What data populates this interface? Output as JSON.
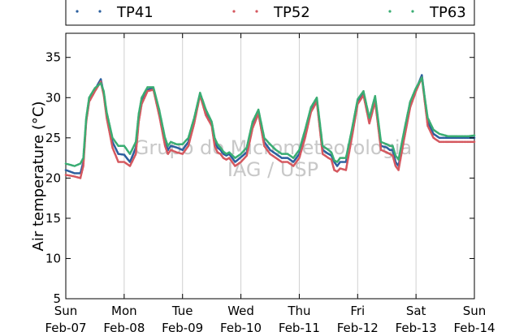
{
  "chart_data": {
    "type": "scatter",
    "title": "",
    "ylabel": "Air temperature (°C)",
    "xlabel": "",
    "ylim": [
      5,
      38
    ],
    "yticks": [
      5,
      10,
      15,
      20,
      25,
      30,
      35
    ],
    "xlim": [
      0,
      7
    ],
    "xticks": [
      {
        "x": 0,
        "day": "Sun",
        "date": "Feb-07"
      },
      {
        "x": 1,
        "day": "Mon",
        "date": "Feb-08"
      },
      {
        "x": 2,
        "day": "Tue",
        "date": "Feb-09"
      },
      {
        "x": 3,
        "day": "Wed",
        "date": "Feb-10"
      },
      {
        "x": 4,
        "day": "Thu",
        "date": "Feb-11"
      },
      {
        "x": 5,
        "day": "Fri",
        "date": "Feb-12"
      },
      {
        "x": 6,
        "day": "Sat",
        "date": "Feb-13"
      },
      {
        "x": 7,
        "day": "Sun",
        "date": "Feb-14"
      }
    ],
    "grid": "vertical",
    "legend_position": "top",
    "watermark": [
      "Grupo de Micrometeorologia",
      "IAG / USP"
    ],
    "series": [
      {
        "name": "TP41",
        "color": "#2c5f9e",
        "x": [
          0,
          0.15,
          0.25,
          0.3,
          0.35,
          0.4,
          0.5,
          0.6,
          0.65,
          0.7,
          0.8,
          0.9,
          1.0,
          1.1,
          1.2,
          1.25,
          1.3,
          1.4,
          1.5,
          1.6,
          1.7,
          1.75,
          1.8,
          1.9,
          2.0,
          2.1,
          2.2,
          2.3,
          2.4,
          2.5,
          2.55,
          2.6,
          2.65,
          2.7,
          2.75,
          2.8,
          2.9,
          3.0,
          3.1,
          3.2,
          3.3,
          3.4,
          3.5,
          3.6,
          3.7,
          3.8,
          3.9,
          4.0,
          4.1,
          4.2,
          4.3,
          4.4,
          4.5,
          4.55,
          4.6,
          4.65,
          4.7,
          4.8,
          4.9,
          5.0,
          5.1,
          5.2,
          5.3,
          5.4,
          5.5,
          5.55,
          5.6,
          5.65,
          5.7,
          5.8,
          5.9,
          6.0,
          6.1,
          6.2,
          6.3,
          6.4,
          6.5,
          6.55,
          6.6,
          6.65,
          6.7,
          6.8,
          6.9,
          7.0
        ],
        "y": [
          21.0,
          20.6,
          20.6,
          22.0,
          27.2,
          29.6,
          31.0,
          32.3,
          30.5,
          27.8,
          24.5,
          23.0,
          22.9,
          22.0,
          23.8,
          27.5,
          29.5,
          31.0,
          31.2,
          28.0,
          24.5,
          23.5,
          24.0,
          23.8,
          23.5,
          24.5,
          27.0,
          30.5,
          28.0,
          26.8,
          24.5,
          23.8,
          23.5,
          23.0,
          22.8,
          23.0,
          22.0,
          22.6,
          23.2,
          26.5,
          28.2,
          24.5,
          23.5,
          23.0,
          22.5,
          22.5,
          22.0,
          23.0,
          25.5,
          28.5,
          29.8,
          23.5,
          23.0,
          22.8,
          22.0,
          21.5,
          22.0,
          22.0,
          25.5,
          29.5,
          30.6,
          27.0,
          29.8,
          24.0,
          23.8,
          23.5,
          23.5,
          22.0,
          21.5,
          25.5,
          29.0,
          31.0,
          32.8,
          27.0,
          25.5,
          25.0,
          25.0,
          25.0,
          25.0,
          25.0,
          25.0,
          25.0,
          25.0,
          25.0
        ]
      },
      {
        "name": "TP52",
        "color": "#d5585f",
        "x": [
          0,
          0.15,
          0.25,
          0.3,
          0.35,
          0.4,
          0.5,
          0.6,
          0.65,
          0.7,
          0.8,
          0.9,
          1.0,
          1.1,
          1.2,
          1.25,
          1.3,
          1.4,
          1.5,
          1.6,
          1.7,
          1.75,
          1.8,
          1.9,
          2.0,
          2.1,
          2.2,
          2.3,
          2.4,
          2.5,
          2.55,
          2.6,
          2.65,
          2.7,
          2.75,
          2.8,
          2.9,
          3.0,
          3.1,
          3.2,
          3.3,
          3.4,
          3.5,
          3.6,
          3.7,
          3.8,
          3.9,
          4.0,
          4.1,
          4.2,
          4.3,
          4.4,
          4.5,
          4.55,
          4.6,
          4.65,
          4.7,
          4.8,
          4.9,
          5.0,
          5.1,
          5.2,
          5.3,
          5.4,
          5.5,
          5.55,
          5.6,
          5.65,
          5.7,
          5.8,
          5.9,
          6.0,
          6.1,
          6.2,
          6.3,
          6.4,
          6.5,
          6.55,
          6.6,
          6.65,
          6.7,
          6.8,
          6.9,
          7.0
        ],
        "y": [
          20.4,
          20.2,
          20.0,
          21.5,
          27.0,
          29.5,
          30.8,
          32.0,
          30.3,
          27.5,
          23.8,
          22.0,
          22.0,
          21.5,
          23.0,
          27.0,
          29.2,
          30.8,
          31.0,
          27.8,
          24.0,
          23.0,
          23.5,
          23.2,
          23.0,
          24.0,
          26.8,
          30.3,
          27.8,
          26.5,
          24.0,
          23.2,
          23.0,
          22.5,
          22.3,
          22.5,
          21.5,
          22.0,
          22.8,
          26.2,
          28.0,
          24.0,
          23.0,
          22.5,
          22.0,
          22.0,
          21.5,
          22.5,
          25.0,
          28.2,
          29.5,
          23.0,
          22.5,
          22.3,
          21.0,
          20.8,
          21.2,
          21.0,
          25.0,
          29.2,
          30.3,
          26.8,
          29.5,
          23.5,
          23.2,
          23.0,
          22.8,
          21.5,
          21.0,
          25.0,
          28.8,
          30.8,
          32.5,
          26.5,
          25.0,
          24.5,
          24.5,
          24.5,
          24.5,
          24.5,
          24.5,
          24.5,
          24.5,
          24.5
        ]
      },
      {
        "name": "TP63",
        "color": "#3aad73",
        "x": [
          0,
          0.15,
          0.25,
          0.3,
          0.35,
          0.4,
          0.5,
          0.6,
          0.65,
          0.7,
          0.8,
          0.9,
          1.0,
          1.1,
          1.2,
          1.25,
          1.3,
          1.4,
          1.5,
          1.6,
          1.7,
          1.75,
          1.8,
          1.9,
          2.0,
          2.1,
          2.2,
          2.3,
          2.4,
          2.5,
          2.55,
          2.6,
          2.65,
          2.7,
          2.75,
          2.8,
          2.9,
          3.0,
          3.1,
          3.2,
          3.3,
          3.4,
          3.5,
          3.6,
          3.7,
          3.8,
          3.9,
          4.0,
          4.1,
          4.2,
          4.3,
          4.4,
          4.5,
          4.55,
          4.6,
          4.65,
          4.7,
          4.8,
          4.9,
          5.0,
          5.1,
          5.2,
          5.3,
          5.4,
          5.5,
          5.55,
          5.6,
          5.65,
          5.7,
          5.8,
          5.9,
          6.0,
          6.1,
          6.2,
          6.3,
          6.4,
          6.5,
          6.55,
          6.6,
          6.65,
          6.7,
          6.8,
          6.9,
          7.0
        ],
        "y": [
          21.8,
          21.5,
          21.8,
          22.5,
          27.5,
          30.0,
          31.2,
          31.8,
          30.8,
          28.2,
          25.0,
          24.0,
          24.0,
          23.0,
          24.5,
          28.0,
          30.0,
          31.3,
          31.3,
          28.5,
          25.0,
          24.0,
          24.5,
          24.2,
          24.2,
          25.0,
          27.5,
          30.6,
          28.5,
          27.0,
          25.0,
          24.2,
          23.8,
          23.3,
          23.0,
          23.2,
          22.5,
          23.0,
          23.8,
          27.0,
          28.5,
          25.0,
          24.2,
          23.5,
          23.0,
          23.0,
          22.5,
          23.5,
          26.0,
          28.8,
          30.0,
          24.0,
          23.5,
          23.2,
          22.2,
          22.0,
          22.5,
          22.5,
          26.0,
          29.8,
          30.8,
          27.5,
          30.2,
          24.5,
          24.2,
          24.0,
          24.0,
          22.8,
          22.3,
          26.0,
          29.5,
          31.2,
          32.5,
          27.5,
          26.0,
          25.5,
          25.3,
          25.2,
          25.2,
          25.2,
          25.2,
          25.2,
          25.2,
          25.3
        ]
      }
    ]
  }
}
